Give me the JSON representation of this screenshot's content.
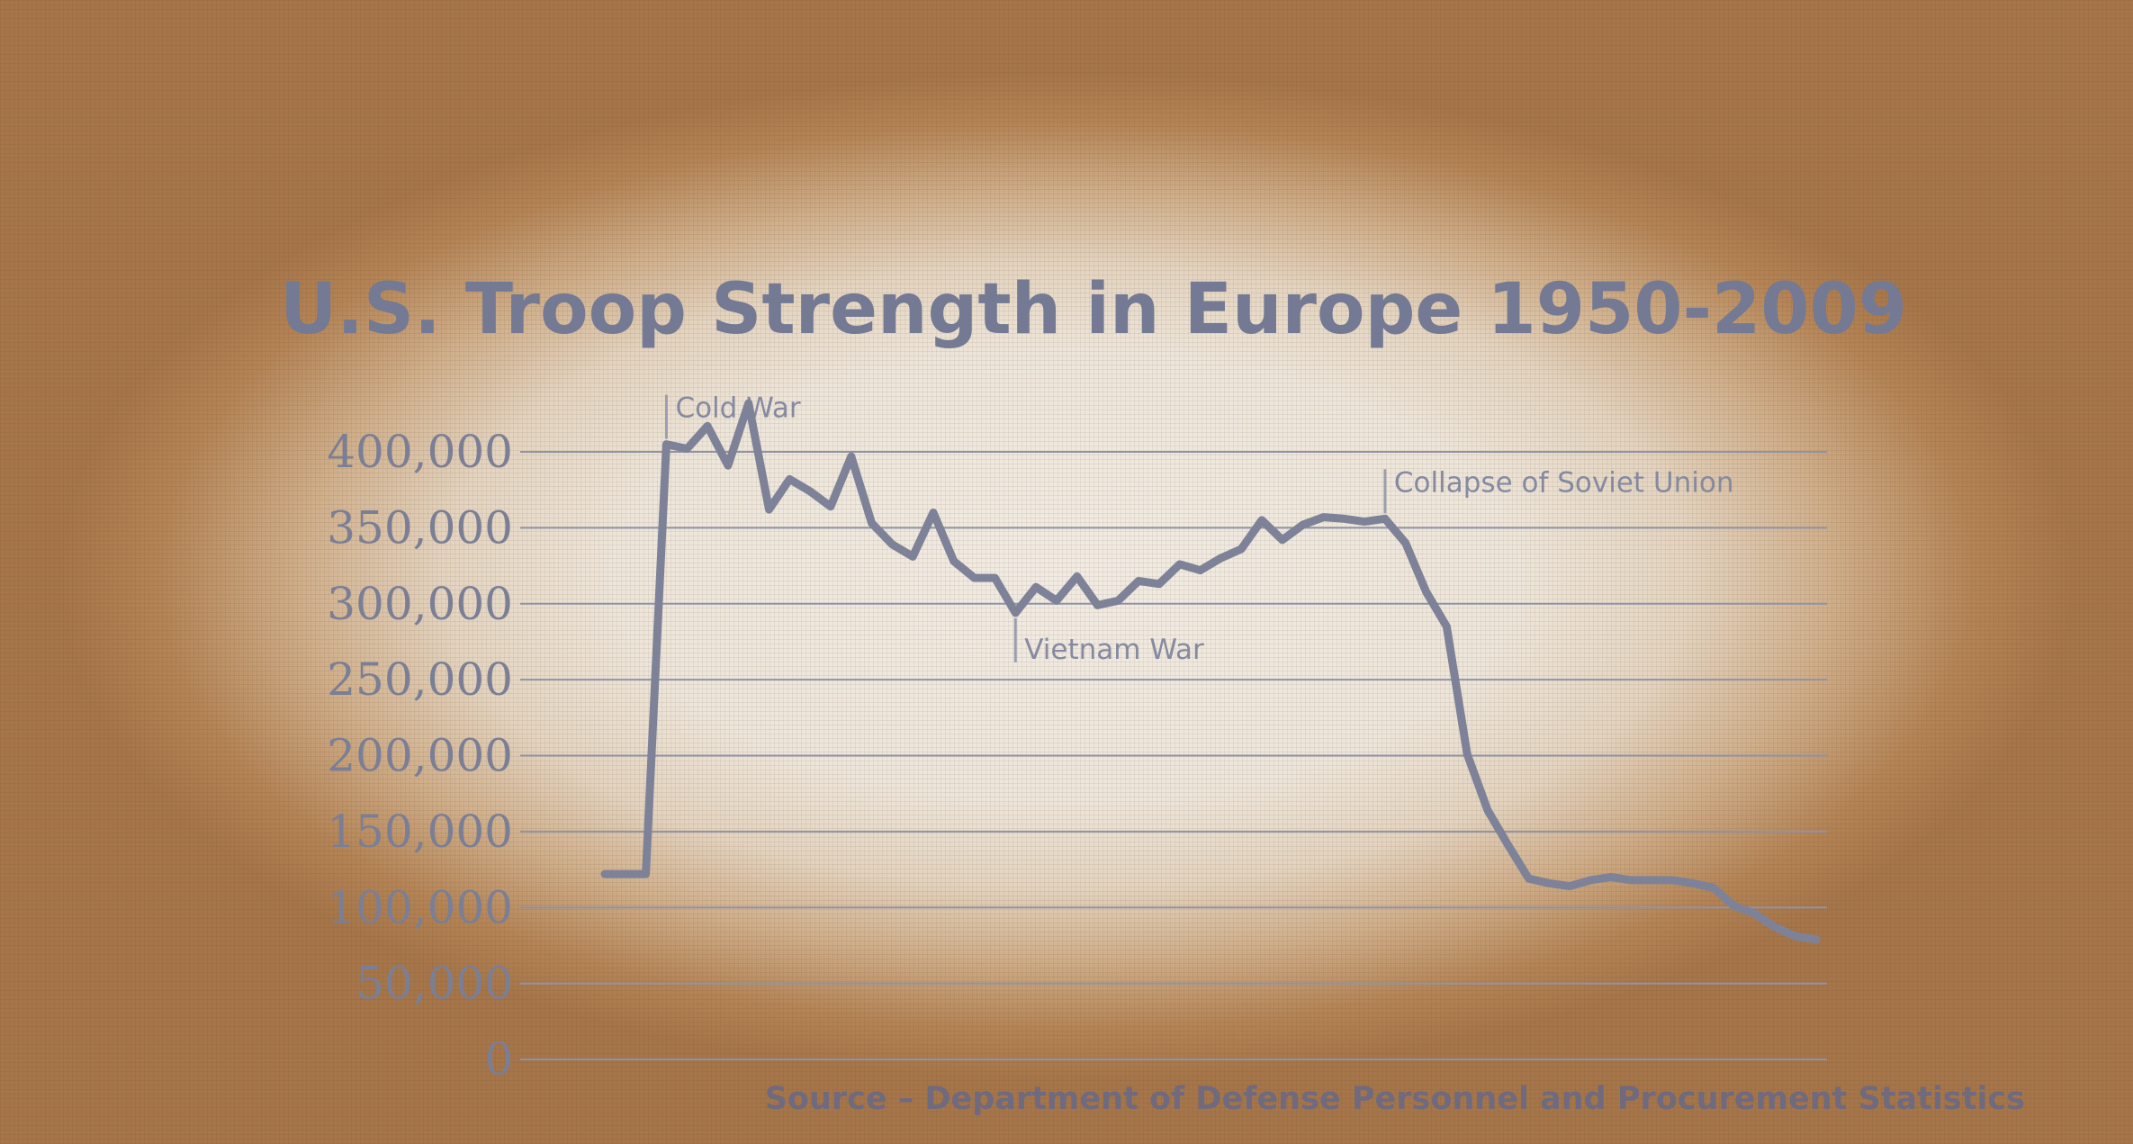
{
  "chart_data": {
    "type": "line",
    "title": "U.S. Troop Strength in Europe 1950-2009",
    "source": "Source – Department of Defense Personnel and Procurement Statistics",
    "xlabel": "",
    "ylabel": "",
    "xlim": [
      1950,
      2009
    ],
    "ylim": [
      0,
      400000
    ],
    "yticks": [
      0,
      50000,
      100000,
      150000,
      200000,
      250000,
      300000,
      350000,
      400000
    ],
    "ytick_labels": [
      "0",
      "50,000",
      "100,000",
      "150,000",
      "200,000",
      "250,000",
      "300,000",
      "350,000",
      "400,000"
    ],
    "grid": true,
    "legend": "none",
    "line_color": "#7e8298",
    "series": [
      {
        "x": [
          1950,
          1951,
          1952,
          1953,
          1954,
          1955,
          1956,
          1957,
          1958,
          1959,
          1960,
          1961,
          1962,
          1963,
          1964,
          1965,
          1966,
          1967,
          1968,
          1969,
          1970,
          1971,
          1972,
          1973,
          1974,
          1975,
          1976,
          1977,
          1978,
          1979,
          1980,
          1981,
          1982,
          1983,
          1984,
          1985,
          1986,
          1987,
          1988,
          1989,
          1990,
          1991,
          1992,
          1993,
          1994,
          1995,
          1996,
          1997,
          1998,
          1999,
          2000,
          2001,
          2002,
          2003,
          2004,
          2005,
          2006,
          2007,
          2008,
          2009
        ],
        "values": [
          122000,
          122000,
          122000,
          405000,
          402000,
          417000,
          391000,
          432000,
          362000,
          382000,
          374000,
          364000,
          397000,
          353000,
          339000,
          331000,
          360000,
          328000,
          317000,
          317000,
          294000,
          311000,
          302000,
          318000,
          299000,
          302000,
          315000,
          313000,
          326000,
          322000,
          330000,
          336000,
          355000,
          342000,
          352000,
          357000,
          356000,
          354000,
          356000,
          340000,
          308000,
          285000,
          201000,
          164000,
          141000,
          119000,
          116000,
          114000,
          118000,
          120000,
          118000,
          118000,
          118000,
          116000,
          113000,
          101000,
          96000,
          87000,
          81000,
          79000
        ]
      }
    ],
    "annotations": [
      {
        "label": "Cold War",
        "x": 1953
      },
      {
        "label": "Vietnam War",
        "x": 1970
      },
      {
        "label": "Collapse of Soviet Union",
        "x": 1988
      }
    ]
  }
}
